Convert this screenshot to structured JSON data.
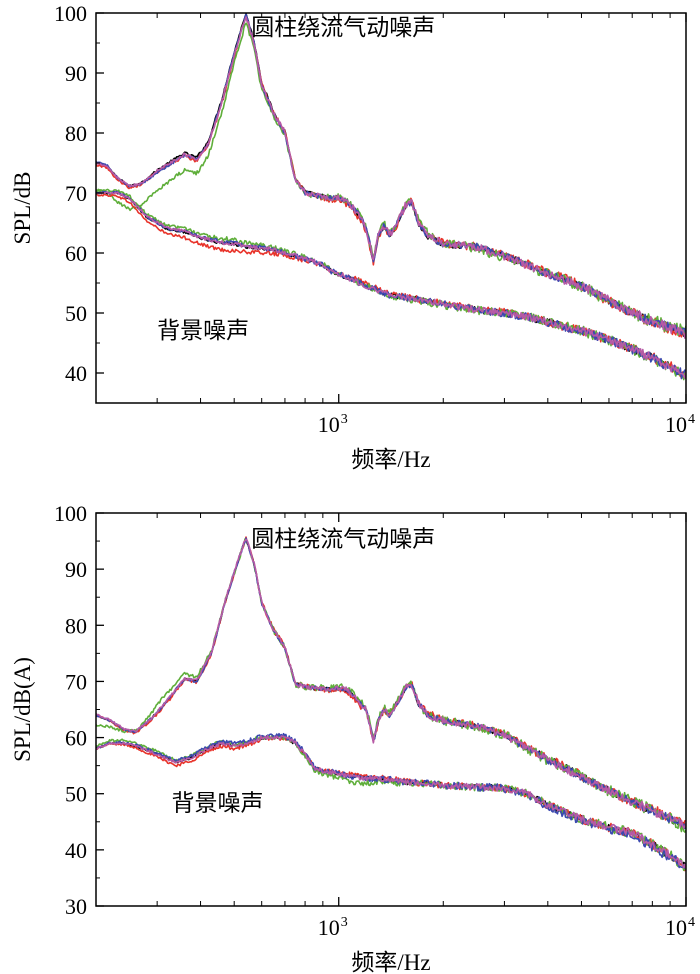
{
  "chart_data": [
    {
      "type": "line",
      "xscale": "log",
      "xlim": [
        200,
        10000
      ],
      "ylim": [
        35,
        100
      ],
      "xlabel": "频率/Hz",
      "ylabel": "SPL/dB",
      "xticks": [
        {
          "value": 1000,
          "base": "10",
          "exp": "3"
        },
        {
          "value": 10000,
          "base": "10",
          "exp": "4"
        }
      ],
      "yticks": [
        40,
        50,
        60,
        70,
        80,
        90,
        100
      ],
      "annotations": [
        {
          "text": "圆柱绕流气动噪声",
          "x": 560,
          "y": 96.3
        },
        {
          "text": "背景噪声",
          "x": 300,
          "y": 45.8
        }
      ],
      "series_colors": [
        "#000000",
        "#e8332a",
        "#5fae3a",
        "#3b48b0",
        "#b65aa6"
      ],
      "groups": [
        {
          "label": "圆柱绕流气动噪声",
          "points": [
            [
              200,
              75
            ],
            [
              215,
              74.5
            ],
            [
              230,
              72.5
            ],
            [
              250,
              71
            ],
            [
              270,
              71.5
            ],
            [
              300,
              73.5
            ],
            [
              330,
              75
            ],
            [
              360,
              76.3
            ],
            [
              390,
              75.5
            ],
            [
              420,
              78
            ],
            [
              460,
              85
            ],
            [
              500,
              93
            ],
            [
              540,
              99.5
            ],
            [
              570,
              95
            ],
            [
              600,
              88
            ],
            [
              650,
              83
            ],
            [
              700,
              80
            ],
            [
              750,
              72
            ],
            [
              800,
              70
            ],
            [
              850,
              69.5
            ],
            [
              900,
              69.3
            ],
            [
              950,
              69
            ],
            [
              1000,
              69.2
            ],
            [
              1050,
              68.5
            ],
            [
              1100,
              67.5
            ],
            [
              1150,
              66
            ],
            [
              1200,
              64
            ],
            [
              1260,
              58.6
            ],
            [
              1300,
              63
            ],
            [
              1350,
              64.5
            ],
            [
              1400,
              63
            ],
            [
              1450,
              64
            ],
            [
              1500,
              66
            ],
            [
              1560,
              68
            ],
            [
              1620,
              68.5
            ],
            [
              1700,
              65
            ],
            [
              1800,
              63
            ],
            [
              2000,
              61.5
            ],
            [
              2500,
              61
            ],
            [
              3000,
              59.5
            ],
            [
              3500,
              58
            ],
            [
              4000,
              56.5
            ],
            [
              5000,
              54.5
            ],
            [
              6000,
              52
            ],
            [
              7000,
              50
            ],
            [
              8000,
              48.5
            ],
            [
              9000,
              47.5
            ],
            [
              10000,
              46.5
            ]
          ],
          "variants": [
            {
              "dy": [
                0,
                0.3,
                0.5,
                0.3,
                0,
                -0.2,
                0.1,
                0,
                0,
                0
              ],
              "amp": 0.35
            },
            {
              "dy": [
                -0.3,
                0,
                -0.2,
                0.3,
                -0.4,
                0.2,
                0,
                0.2,
                0,
                -0.2
              ],
              "amp": 0.5
            },
            {
              "dy": [
                -4.5,
                -3,
                -1.5,
                0,
                0.3,
                0.4,
                -0.3,
                0,
                0,
                0.3
              ],
              "amp": 0.55
            },
            {
              "dy": [
                0.2,
                -0.1,
                0.2,
                0,
                0.2,
                -0.1,
                0.1,
                0,
                0,
                0.2
              ],
              "amp": 0.4
            },
            {
              "dy": [
                0,
                0.2,
                0,
                0.2,
                0,
                0.1,
                0,
                -0.1,
                0.1,
                0
              ],
              "amp": 0.45
            }
          ]
        },
        {
          "label": "背景噪声",
          "points": [
            [
              200,
              70
            ],
            [
              230,
              70
            ],
            [
              250,
              69
            ],
            [
              280,
              66
            ],
            [
              320,
              64
            ],
            [
              360,
              63.5
            ],
            [
              400,
              62.5
            ],
            [
              450,
              61.8
            ],
            [
              500,
              61.5
            ],
            [
              550,
              61
            ],
            [
              600,
              60.8
            ],
            [
              650,
              60.5
            ],
            [
              700,
              60
            ],
            [
              750,
              59.5
            ],
            [
              800,
              59
            ],
            [
              850,
              58.5
            ],
            [
              900,
              58
            ],
            [
              950,
              57
            ],
            [
              1000,
              56.5
            ],
            [
              1100,
              55.5
            ],
            [
              1200,
              54.5
            ],
            [
              1400,
              53
            ],
            [
              1600,
              52.5
            ],
            [
              1800,
              52
            ],
            [
              2000,
              51.5
            ],
            [
              2500,
              50.5
            ],
            [
              3000,
              50
            ],
            [
              3500,
              49.3
            ],
            [
              4000,
              48.5
            ],
            [
              5000,
              47
            ],
            [
              6000,
              45.5
            ],
            [
              7000,
              44
            ],
            [
              8000,
              42.5
            ],
            [
              9000,
              41
            ],
            [
              10000,
              39.5
            ]
          ],
          "variants": [
            {
              "dy": [
                0,
                0,
                0,
                0,
                0,
                0,
                0,
                0,
                0,
                0
              ],
              "amp": 0.35
            },
            {
              "dy": [
                -0.3,
                -0.8,
                -1.2,
                -0.3,
                0.3,
                0,
                0.2,
                0,
                0,
                0.2
              ],
              "amp": 0.45
            },
            {
              "dy": [
                0.4,
                0.5,
                0.7,
                0.3,
                0,
                -0.2,
                0,
                0.1,
                0,
                -0.2
              ],
              "amp": 0.5
            },
            {
              "dy": [
                0.1,
                0.1,
                0.2,
                0,
                0,
                0,
                0,
                0,
                0,
                0
              ],
              "amp": 0.45
            },
            {
              "dy": [
                0,
                0.2,
                0,
                0.1,
                0,
                0,
                0,
                0,
                0,
                0
              ],
              "amp": 0.4
            }
          ]
        }
      ]
    },
    {
      "type": "line",
      "xscale": "log",
      "xlim": [
        200,
        10000
      ],
      "ylim": [
        30,
        100
      ],
      "xlabel": "频率/Hz",
      "ylabel": "SPL/dB(A)",
      "xticks": [
        {
          "value": 1000,
          "base": "10",
          "exp": "3"
        },
        {
          "value": 10000,
          "base": "10",
          "exp": "4"
        }
      ],
      "yticks": [
        30,
        40,
        50,
        60,
        70,
        80,
        90,
        100
      ],
      "annotations": [
        {
          "text": "圆柱绕流气动噪声",
          "x": 560,
          "y": 94
        },
        {
          "text": "背景噪声",
          "x": 330,
          "y": 47
        }
      ],
      "series_colors": [
        "#000000",
        "#e8332a",
        "#5fae3a",
        "#3b48b0",
        "#b65aa6"
      ],
      "groups": [
        {
          "label": "圆柱绕流气动噪声",
          "points": [
            [
              200,
              64
            ],
            [
              220,
              63
            ],
            [
              240,
              61.5
            ],
            [
              260,
              61
            ],
            [
              290,
              63.5
            ],
            [
              330,
              67.5
            ],
            [
              360,
              70.5
            ],
            [
              390,
              70
            ],
            [
              430,
              75
            ],
            [
              470,
              84
            ],
            [
              510,
              91
            ],
            [
              540,
              95.5
            ],
            [
              570,
              91
            ],
            [
              600,
              84
            ],
            [
              650,
              79
            ],
            [
              700,
              76
            ],
            [
              750,
              69.5
            ],
            [
              800,
              69
            ],
            [
              850,
              68.8
            ],
            [
              900,
              68.7
            ],
            [
              950,
              68.5
            ],
            [
              1000,
              68.7
            ],
            [
              1050,
              68.5
            ],
            [
              1100,
              67.5
            ],
            [
              1150,
              66
            ],
            [
              1200,
              65
            ],
            [
              1260,
              59.3
            ],
            [
              1300,
              63
            ],
            [
              1350,
              65
            ],
            [
              1400,
              64
            ],
            [
              1450,
              65.5
            ],
            [
              1500,
              67
            ],
            [
              1560,
              69
            ],
            [
              1620,
              69.5
            ],
            [
              1700,
              66
            ],
            [
              1800,
              64
            ],
            [
              2000,
              63
            ],
            [
              2500,
              62
            ],
            [
              3000,
              60.5
            ],
            [
              3500,
              58
            ],
            [
              4000,
              56
            ],
            [
              5000,
              53
            ],
            [
              6000,
              50.5
            ],
            [
              7000,
              48.5
            ],
            [
              8000,
              47
            ],
            [
              9000,
              45.5
            ],
            [
              10000,
              44
            ]
          ],
          "variants": [
            {
              "dy": [
                0,
                0,
                0,
                0,
                0,
                0,
                0,
                0.3,
                0,
                0
              ],
              "amp": 0.35
            },
            {
              "dy": [
                0,
                -0.3,
                0,
                0.2,
                -0.3,
                0.3,
                0,
                0.3,
                0,
                0.3
              ],
              "amp": 0.5
            },
            {
              "dy": [
                -1.8,
                1.5,
                0,
                0,
                0.4,
                0,
                0,
                0,
                0,
                0
              ],
              "amp": 0.6
            },
            {
              "dy": [
                0,
                0,
                0,
                0,
                0,
                0,
                0,
                0,
                0,
                0
              ],
              "amp": 0.4
            },
            {
              "dy": [
                0.2,
                0,
                0.2,
                0,
                0.1,
                0,
                0,
                0,
                0,
                0
              ],
              "amp": 0.45
            }
          ]
        },
        {
          "label": "背景噪声",
          "points": [
            [
              200,
              58
            ],
            [
              220,
              59
            ],
            [
              240,
              59
            ],
            [
              260,
              58.5
            ],
            [
              300,
              57
            ],
            [
              340,
              55.5
            ],
            [
              380,
              56.5
            ],
            [
              420,
              58
            ],
            [
              460,
              59
            ],
            [
              500,
              58.5
            ],
            [
              550,
              59
            ],
            [
              600,
              60
            ],
            [
              650,
              60
            ],
            [
              700,
              60
            ],
            [
              750,
              59
            ],
            [
              800,
              57
            ],
            [
              850,
              54.5
            ],
            [
              900,
              54
            ],
            [
              950,
              53.8
            ],
            [
              1000,
              53.5
            ],
            [
              1100,
              53
            ],
            [
              1200,
              52.8
            ],
            [
              1400,
              52.5
            ],
            [
              1600,
              52
            ],
            [
              1800,
              51.8
            ],
            [
              2000,
              51.5
            ],
            [
              2500,
              51.2
            ],
            [
              3000,
              51
            ],
            [
              3500,
              50
            ],
            [
              4000,
              48
            ],
            [
              5000,
              45.5
            ],
            [
              6000,
              44
            ],
            [
              7000,
              43
            ],
            [
              8000,
              41
            ],
            [
              9000,
              39
            ],
            [
              10000,
              37
            ]
          ],
          "variants": [
            {
              "dy": [
                0,
                0,
                0,
                0,
                0,
                0,
                0,
                0,
                0,
                0
              ],
              "amp": 0.35
            },
            {
              "dy": [
                0,
                -0.5,
                -0.5,
                0,
                0.3,
                0,
                0,
                0,
                0,
                0
              ],
              "amp": 0.45
            },
            {
              "dy": [
                0.5,
                0.5,
                0.3,
                0,
                -1,
                0,
                0,
                0,
                0,
                0
              ],
              "amp": 0.5
            },
            {
              "dy": [
                0,
                0.3,
                0.4,
                0.3,
                0,
                0,
                0,
                -0.2,
                -0.3,
                -0.3
              ],
              "amp": 0.5
            },
            {
              "dy": [
                0,
                0,
                0,
                0,
                0,
                0,
                0,
                0,
                0,
                0
              ],
              "amp": 0.4
            }
          ]
        }
      ]
    }
  ]
}
